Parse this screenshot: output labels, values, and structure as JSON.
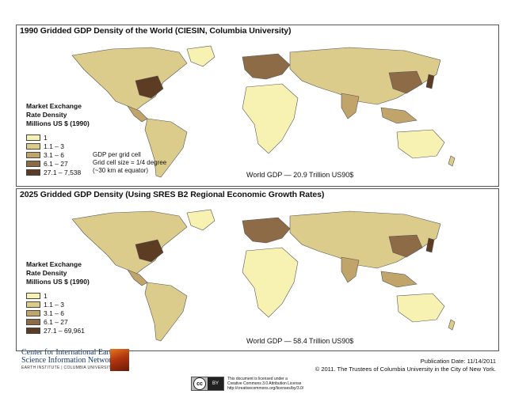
{
  "panels": [
    {
      "title": "1990 Gridded GDP Density of the World (CIESIN, Columbia University)",
      "legend_title": [
        "Market Exchange",
        "Rate Density",
        "Millions US $ (1990)"
      ],
      "legend_items": [
        {
          "label": "1",
          "color": "#f7f1b2"
        },
        {
          "label": "1.1 – 3",
          "color": "#dccc8c"
        },
        {
          "label": "3.1 – 6",
          "color": "#c0a46a"
        },
        {
          "label": "6.1 – 27",
          "color": "#8e6b47"
        },
        {
          "label": "27.1 – 7,538",
          "color": "#5c3c22"
        }
      ],
      "note": [
        "GDP per grid cell",
        "Grid cell size = 1/4 degree",
        "(~30 km at equator)"
      ],
      "world_gdp": "World GDP — 20.9 Trillion US90$"
    },
    {
      "title": "2025 Gridded GDP Density (Using SRES B2 Regional Economic Growth Rates)",
      "legend_title": [
        "Market Exchange",
        "Rate Density",
        "Millions US $ (1990)"
      ],
      "legend_items": [
        {
          "label": "1",
          "color": "#f7f1b2"
        },
        {
          "label": "1.1 – 3",
          "color": "#dccc8c"
        },
        {
          "label": "3.1 – 6",
          "color": "#c0a46a"
        },
        {
          "label": "6.1 – 27",
          "color": "#8e6b47"
        },
        {
          "label": "27.1 – 69,961",
          "color": "#5c3c22"
        }
      ],
      "world_gdp": "World GDP — 58.4 Trillion US90$"
    }
  ],
  "footer": {
    "org_line1": "Center for International Earth",
    "org_line2": "Science Information Network",
    "org_line3": "EARTH INSTITUTE | COLUMBIA UNIVERSITY",
    "publication_date": "Publication Date: 11/14/2011",
    "copyright": "© 2011. The Trustees of Columbia University in the City of New York.",
    "license_lines": [
      "This document is licensed under a",
      "Creative Commons 3.0 Attribution License",
      "http://creativecommons.org/licenses/by/3.0/"
    ],
    "cc_label": "cc",
    "by_label": "BY"
  },
  "colors": {
    "lightest": "#f7f1b2",
    "light": "#dccc8c",
    "medium": "#c0a46a",
    "dark": "#8e6b47",
    "darkest": "#5c3c22",
    "outline": "#555555"
  }
}
